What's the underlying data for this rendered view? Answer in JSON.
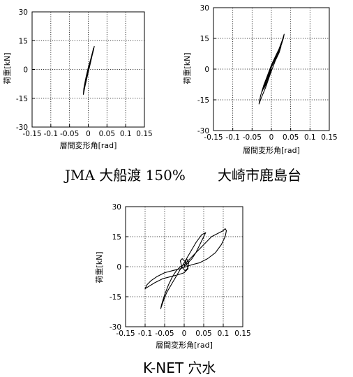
{
  "chart_data": [
    {
      "type": "line",
      "caption": "JMA 大船渡 150%",
      "xlabel": "層間変形角[rad]",
      "ylabel": "荷重[kN]",
      "xlim": [
        -0.15,
        0.15
      ],
      "ylim": [
        -30,
        30
      ],
      "xticks": [
        "-0.15",
        "-0.1",
        "-0.05",
        "0",
        "0.05",
        "0.1",
        "0.15"
      ],
      "yticks": [
        "30",
        "15",
        "0",
        "-15",
        "-30"
      ],
      "grid": "dotted",
      "series": [
        {
          "x": [
            0,
            -0.004,
            -0.009,
            -0.012,
            -0.01,
            -0.004,
            0.002,
            0.008,
            0.013,
            0.015,
            0.012,
            0.006,
            0,
            -0.006,
            -0.01,
            -0.012,
            -0.008,
            -0.002,
            0.004,
            0.01,
            0.014,
            0.016,
            0.013,
            0.006,
            -0.002,
            -0.008,
            -0.012,
            -0.013,
            -0.009,
            -0.003,
            0.003,
            0.009,
            0.012,
            0.014,
            0.01,
            0.004,
            -0.002,
            -0.007,
            -0.01,
            -0.006,
            0
          ],
          "y": [
            0,
            -4,
            -9,
            -12,
            -10,
            -4,
            2,
            6,
            10,
            11,
            9,
            5,
            1,
            -4,
            -8,
            -11,
            -8,
            -3,
            2,
            7,
            10,
            12,
            10,
            5,
            -1,
            -6,
            -10,
            -13,
            -9,
            -4,
            1,
            6,
            9,
            11,
            8,
            3,
            -2,
            -5,
            -8,
            -5,
            0
          ]
        }
      ]
    },
    {
      "type": "line",
      "caption": "大崎市鹿島台",
      "xlabel": "層間変形角[rad]",
      "ylabel": "荷重[kN]",
      "xlim": [
        -0.15,
        0.15
      ],
      "ylim": [
        -30,
        30
      ],
      "xticks": [
        "-0.15",
        "-0.1",
        "-0.05",
        "0",
        "0.05",
        "0.1",
        "0.15"
      ],
      "yticks": [
        "30",
        "15",
        "0",
        "-15",
        "-30"
      ],
      "grid": "dotted",
      "series": [
        {
          "x": [
            0,
            -0.008,
            -0.015,
            -0.022,
            -0.018,
            -0.01,
            0,
            0.01,
            0.018,
            0.024,
            0.02,
            0.01,
            0,
            -0.01,
            -0.02,
            -0.028,
            -0.032,
            -0.026,
            -0.015,
            -0.004,
            0.008,
            0.018,
            0.026,
            0.031,
            0.033,
            0.028,
            0.018,
            0.006,
            -0.006,
            -0.016,
            -0.024,
            -0.02,
            -0.01,
            0,
            0.01,
            0.02,
            0.025,
            0.018,
            0.008,
            -0.002,
            -0.01,
            -0.004,
            0
          ],
          "y": [
            0,
            -4,
            -7,
            -10,
            -9,
            -6,
            -1,
            4,
            8,
            11,
            10,
            6,
            2,
            -3,
            -8,
            -13,
            -17,
            -14,
            -9,
            -3,
            3,
            8,
            12,
            15,
            17,
            14,
            9,
            4,
            -2,
            -7,
            -11,
            -9,
            -5,
            -1,
            4,
            8,
            11,
            8,
            4,
            0,
            -4,
            -2,
            0
          ]
        }
      ]
    },
    {
      "type": "line",
      "caption": "K-NET 穴水",
      "xlabel": "層間変形角[rad]",
      "ylabel": "荷重[kN]",
      "xlim": [
        -0.15,
        0.15
      ],
      "ylim": [
        -30,
        30
      ],
      "xticks": [
        "-0.15",
        "-0.1",
        "-0.05",
        "0",
        "0.05",
        "0.1",
        "0.15"
      ],
      "yticks": [
        "30",
        "15",
        "0",
        "-15",
        "-30"
      ],
      "grid": "dotted",
      "series": [
        {
          "x": [
            0,
            0.01,
            0.02,
            0.03,
            0.04,
            0.05,
            0.055,
            0.045,
            0.03,
            0.015,
            0,
            -0.015,
            -0.03,
            -0.045,
            -0.055,
            -0.06,
            -0.058,
            -0.05,
            -0.04,
            -0.03,
            -0.02,
            -0.01,
            0,
            0.01,
            0.02,
            0.03,
            0.04,
            0.05,
            0.06,
            0.07,
            0.08,
            0.09,
            0.1,
            0.105,
            0.108,
            0.105,
            0.095,
            0.08,
            0.06,
            0.04,
            0.02,
            0.005,
            -0.01,
            -0.03,
            -0.05,
            -0.07,
            -0.085,
            -0.095,
            -0.1,
            -0.092,
            -0.075,
            -0.055,
            -0.035,
            -0.015,
            0,
            0.01,
            0.005,
            -0.005,
            -0.01,
            -0.006,
            0.002,
            0.008,
            0.012,
            0.006,
            0
          ],
          "y": [
            0,
            2,
            4,
            7,
            11,
            15,
            17,
            16,
            12,
            7,
            2,
            -3,
            -8,
            -13,
            -18,
            -21,
            -19,
            -14,
            -9,
            -5,
            -2,
            0,
            1,
            3,
            5,
            7,
            9,
            11,
            13,
            15,
            16,
            17,
            18,
            19,
            18,
            15,
            11,
            7,
            4,
            2,
            1,
            0,
            -1,
            -2,
            -3,
            -5,
            -7,
            -9,
            -11,
            -10,
            -8,
            -6,
            -5,
            -4,
            -3,
            -1,
            2,
            4,
            3,
            0,
            -2,
            -1,
            2,
            4,
            0
          ]
        }
      ]
    }
  ]
}
